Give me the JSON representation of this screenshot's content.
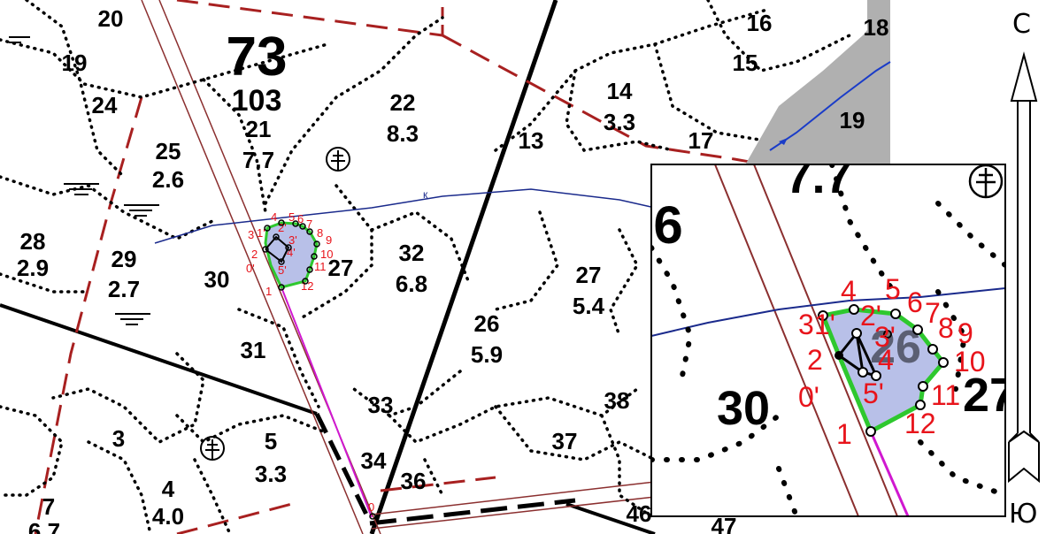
{
  "quarter": {
    "number": "73",
    "area": "103"
  },
  "compass": {
    "north": "С",
    "south": "Ю"
  },
  "stream_label": "к",
  "plots": [
    {
      "id": "20",
      "area": ""
    },
    {
      "id": "19",
      "area": ""
    },
    {
      "id": "24",
      "area": ""
    },
    {
      "id": "25",
      "area": "2.6"
    },
    {
      "id": "28",
      "area": "2.9"
    },
    {
      "id": "29",
      "area": "2.7"
    },
    {
      "id": "30",
      "area": ""
    },
    {
      "id": "31",
      "area": ""
    },
    {
      "id": "21",
      "area": "7.7"
    },
    {
      "id": "22",
      "area": "8.3"
    },
    {
      "id": "32",
      "area": "6.8"
    },
    {
      "id": "27",
      "area": ""
    },
    {
      "id": "13",
      "area": ""
    },
    {
      "id": "14",
      "area": "3.3"
    },
    {
      "id": "16",
      "area": ""
    },
    {
      "id": "15",
      "area": ""
    },
    {
      "id": "17",
      "area": ""
    },
    {
      "id": "18",
      "area": ""
    },
    {
      "id": "19",
      "area": ""
    },
    {
      "id": "26",
      "area": "5.9"
    },
    {
      "id": "27",
      "area": "5.4"
    },
    {
      "id": "33",
      "area": ""
    },
    {
      "id": "34",
      "area": ""
    },
    {
      "id": "36",
      "area": ""
    },
    {
      "id": "37",
      "area": ""
    },
    {
      "id": "38",
      "area": ""
    },
    {
      "id": "46",
      "area": ""
    },
    {
      "id": "47",
      "area": ""
    },
    {
      "id": "3",
      "area": ""
    },
    {
      "id": "5",
      "area": "3.3"
    },
    {
      "id": "4",
      "area": "4.0"
    },
    {
      "id": "7",
      "area": "6.7"
    }
  ],
  "main_point_labels": [
    "4",
    "5",
    "6",
    "7",
    "8",
    "9",
    "3",
    "1'",
    "2'",
    "3'",
    "4'",
    "2",
    "0'",
    "5'",
    "10",
    "11",
    "12",
    "1",
    "0"
  ],
  "inset": {
    "plot_labels": [
      "6",
      "30",
      "26",
      "27",
      "7.7"
    ],
    "point_labels": [
      "4",
      "5",
      "6",
      "7",
      "8",
      "9",
      "3",
      "1'",
      "2'",
      "3'",
      "2",
      "4",
      "10",
      "0'",
      "5'",
      "11",
      "12",
      "1"
    ]
  },
  "colors": {
    "boundary": "#e8141b",
    "plot_fill": "#b8c0e8",
    "plot_outline": "#2ec82e",
    "stream": "#1a2a8c",
    "water": "#b0b0b0"
  }
}
